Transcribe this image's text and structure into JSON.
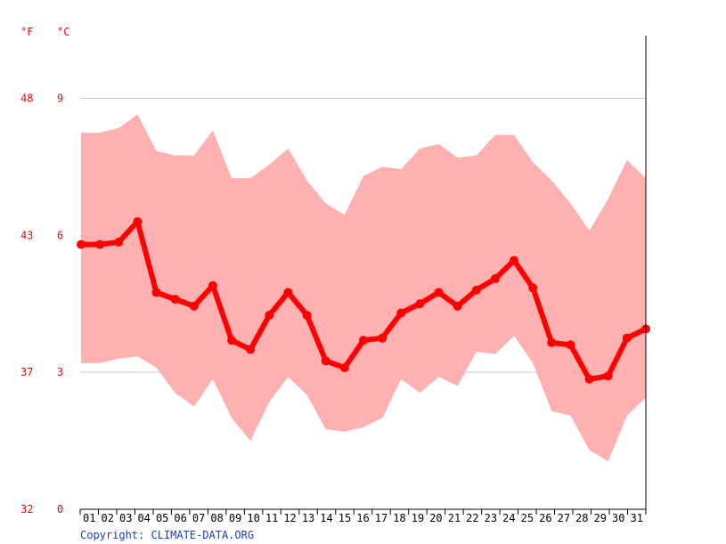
{
  "chart_data": {
    "type": "line",
    "x": [
      "01",
      "02",
      "03",
      "04",
      "05",
      "06",
      "07",
      "08",
      "09",
      "10",
      "11",
      "12",
      "13",
      "14",
      "15",
      "16",
      "17",
      "18",
      "19",
      "20",
      "21",
      "22",
      "23",
      "24",
      "25",
      "26",
      "27",
      "28",
      "29",
      "30",
      "31"
    ],
    "series": [
      {
        "type": "line",
        "values": [
          5.8,
          5.8,
          5.85,
          6.3,
          4.75,
          4.6,
          4.45,
          4.9,
          3.7,
          3.5,
          4.25,
          4.75,
          4.25,
          3.25,
          3.1,
          3.7,
          3.75,
          4.3,
          4.5,
          4.75,
          4.45,
          4.8,
          5.05,
          5.45,
          4.85,
          3.65,
          3.6,
          2.85,
          2.92,
          3.75,
          3.95
        ],
        "color": "#ff0000"
      },
      {
        "type": "band",
        "upper": [
          8.25,
          8.25,
          8.35,
          8.65,
          7.85,
          7.75,
          7.75,
          8.3,
          7.25,
          7.25,
          7.55,
          7.9,
          7.2,
          6.7,
          6.45,
          7.3,
          7.5,
          7.45,
          7.9,
          8.0,
          7.7,
          7.75,
          8.2,
          8.2,
          7.6,
          7.2,
          6.7,
          6.1,
          6.8,
          7.65,
          7.25
        ],
        "lower": [
          3.2,
          3.2,
          3.3,
          3.35,
          3.1,
          2.55,
          2.25,
          2.85,
          2.0,
          1.5,
          2.35,
          2.9,
          2.5,
          1.75,
          1.7,
          1.8,
          2.0,
          2.85,
          2.55,
          2.9,
          2.7,
          3.45,
          3.4,
          3.8,
          3.2,
          2.15,
          2.05,
          1.3,
          1.05,
          2.05,
          2.45
        ],
        "color": "#ffb0b0"
      }
    ],
    "y_unit_left": "°F",
    "y_unit_right": "°C",
    "yticks_celsius": [
      "9",
      "6",
      "3",
      "0"
    ],
    "yticks_fahrenheit": [
      "48",
      "43",
      "37",
      "32"
    ],
    "yticks_values": [
      9,
      6,
      3,
      0
    ],
    "ylim": [
      0,
      10.5
    ],
    "grid": true
  },
  "copyright": "Copyright: CLIMATE-DATA.ORG"
}
